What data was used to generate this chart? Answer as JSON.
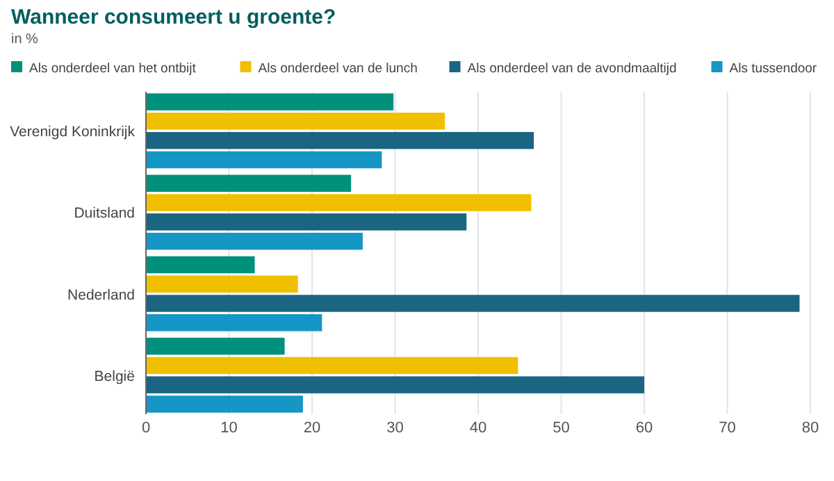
{
  "chart_data": {
    "type": "bar",
    "orientation": "horizontal",
    "title": "Wanneer consumeert u groente?",
    "subtitle": "in %",
    "categories": [
      "Verenigd Koninkrijk",
      "Duitsland",
      "Nederland",
      "België"
    ],
    "series": [
      {
        "name": "Als onderdeel van het ontbijt",
        "color": "#00917c",
        "values": [
          29.8,
          24.7,
          13.1,
          16.7
        ]
      },
      {
        "name": "Als onderdeel van de lunch",
        "color": "#f0c000",
        "values": [
          36.0,
          46.4,
          18.3,
          44.8
        ]
      },
      {
        "name": "Als onderdeel van de avondmaaltijd",
        "color": "#1b6582",
        "values": [
          46.7,
          38.6,
          78.7,
          60.0
        ]
      },
      {
        "name": "Als tussendoor",
        "color": "#1596c4",
        "values": [
          28.4,
          26.1,
          21.2,
          18.9
        ]
      }
    ],
    "xlim": [
      0,
      80
    ],
    "xticks": [
      0,
      10,
      20,
      30,
      40,
      50,
      60,
      70,
      80
    ],
    "grid": "x",
    "legend": "top"
  }
}
